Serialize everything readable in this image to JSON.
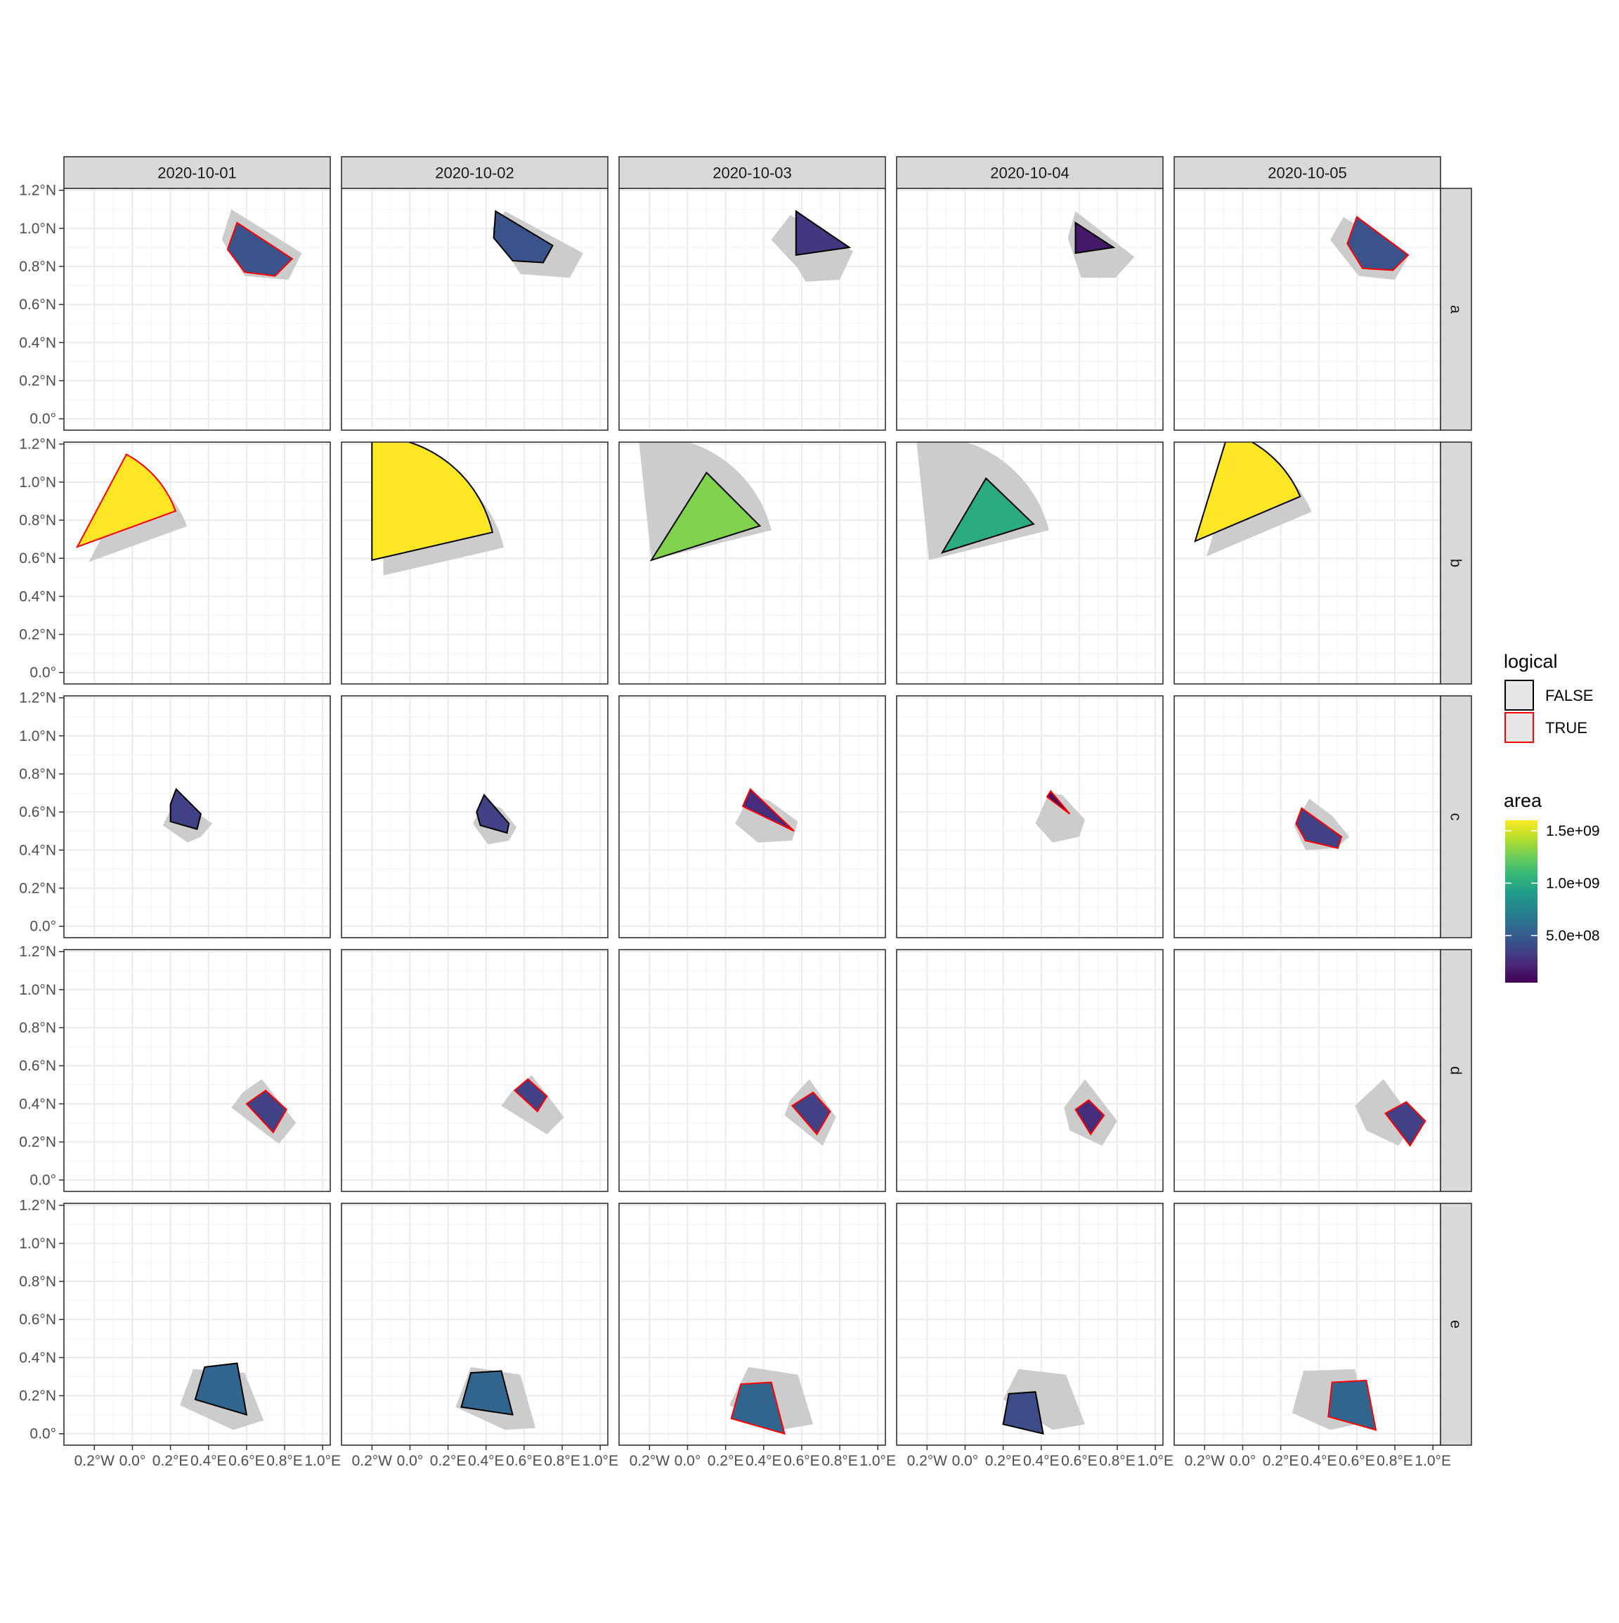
{
  "chart_data": {
    "type": "faceted-map",
    "title": "",
    "xlabel": "",
    "ylabel": "",
    "columns": [
      "2020-10-01",
      "2020-10-02",
      "2020-10-03",
      "2020-10-04",
      "2020-10-05"
    ],
    "rows": [
      "a",
      "b",
      "c",
      "d",
      "e"
    ],
    "x_ticks": [
      {
        "value": -0.2,
        "label": "0.2°W"
      },
      {
        "value": 0.0,
        "label": "0.0°"
      },
      {
        "value": 0.2,
        "label": "0.2°E"
      },
      {
        "value": 0.4,
        "label": "0.4°E"
      },
      {
        "value": 0.6,
        "label": "0.6°E"
      },
      {
        "value": 0.8,
        "label": "0.8°E"
      },
      {
        "value": 1.0,
        "label": "1.0°E"
      }
    ],
    "y_ticks": [
      {
        "value": 0.0,
        "label": "0.0°"
      },
      {
        "value": 0.2,
        "label": "0.2°N"
      },
      {
        "value": 0.4,
        "label": "0.4°N"
      },
      {
        "value": 0.6,
        "label": "0.6°N"
      },
      {
        "value": 0.8,
        "label": "0.8°N"
      },
      {
        "value": 1.0,
        "label": "1.0°N"
      },
      {
        "value": 1.2,
        "label": "1.2°N"
      }
    ],
    "xlim": [
      -0.36,
      1.04
    ],
    "ylim": [
      -0.06,
      1.21
    ],
    "grid": true,
    "legend_position": "right",
    "legend_logical": {
      "title": "logical",
      "entries": [
        {
          "label": "FALSE",
          "outline": "#000000"
        },
        {
          "label": "TRUE",
          "outline": "#ff0000"
        }
      ]
    },
    "legend_area": {
      "title": "area",
      "palette": "viridis",
      "range": [
        50000000.0,
        1600000000.0
      ],
      "ticks": [
        {
          "value": 1500000000.0,
          "label": "1.5e+09"
        },
        {
          "value": 1000000000.0,
          "label": "1.0e+09"
        },
        {
          "value": 500000000.0,
          "label": "5.0e+08"
        }
      ]
    },
    "shadow_color": "#cccccc",
    "polygons": {
      "a": [
        {
          "area": 450000000.0,
          "logical": "TRUE",
          "shape": [
            [
              0.55,
              1.03
            ],
            [
              0.84,
              0.84
            ],
            [
              0.75,
              0.75
            ],
            [
              0.59,
              0.77
            ],
            [
              0.5,
              0.89
            ]
          ],
          "shadow": [
            [
              0.47,
              0.94
            ],
            [
              0.52,
              1.1
            ],
            [
              0.89,
              0.87
            ],
            [
              0.82,
              0.73
            ],
            [
              0.59,
              0.75
            ]
          ]
        },
        {
          "area": 450000000.0,
          "logical": "FALSE",
          "shape": [
            [
              0.45,
              1.09
            ],
            [
              0.75,
              0.91
            ],
            [
              0.7,
              0.82
            ],
            [
              0.54,
              0.83
            ],
            [
              0.44,
              0.95
            ]
          ],
          "shadow": [
            [
              0.43,
              1.0
            ],
            [
              0.5,
              1.09
            ],
            [
              0.91,
              0.87
            ],
            [
              0.84,
              0.74
            ],
            [
              0.58,
              0.76
            ]
          ]
        },
        {
          "area": 300000000.0,
          "logical": "FALSE",
          "shape": [
            [
              0.57,
              1.09
            ],
            [
              0.85,
              0.9
            ],
            [
              0.57,
              0.86
            ]
          ],
          "shadow": [
            [
              0.44,
              0.94
            ],
            [
              0.54,
              1.07
            ],
            [
              0.87,
              0.88
            ],
            [
              0.8,
              0.73
            ],
            [
              0.62,
              0.72
            ],
            [
              0.58,
              0.79
            ]
          ]
        },
        {
          "area": 150000000.0,
          "logical": "FALSE",
          "shape": [
            [
              0.58,
              1.03
            ],
            [
              0.78,
              0.9
            ],
            [
              0.58,
              0.87
            ]
          ],
          "shadow": [
            [
              0.54,
              0.95
            ],
            [
              0.58,
              1.09
            ],
            [
              0.89,
              0.85
            ],
            [
              0.79,
              0.74
            ],
            [
              0.61,
              0.74
            ]
          ]
        },
        {
          "area": 450000000.0,
          "logical": "TRUE",
          "shape": [
            [
              0.6,
              1.06
            ],
            [
              0.87,
              0.86
            ],
            [
              0.79,
              0.78
            ],
            [
              0.63,
              0.79
            ],
            [
              0.55,
              0.92
            ]
          ],
          "shadow": [
            [
              0.46,
              0.94
            ],
            [
              0.53,
              1.06
            ],
            [
              0.87,
              0.85
            ],
            [
              0.8,
              0.73
            ],
            [
              0.61,
              0.75
            ]
          ]
        }
      ],
      "b": [
        {
          "area": 1600000000.0,
          "logical": "TRUE",
          "shape": "sector",
          "center": [
            -0.29,
            0.66
          ],
          "angles": [
            62,
            20
          ],
          "radius": 0.55
        },
        {
          "area": 1600000000.0,
          "logical": "FALSE",
          "shape": "sector",
          "center": [
            -0.2,
            0.59
          ],
          "angles": [
            90,
            13
          ],
          "radius": 0.65
        },
        {
          "area": 1300000000.0,
          "logical": "FALSE",
          "shape": [
            [
              0.1,
              1.05
            ],
            [
              0.38,
              0.77
            ],
            [
              -0.19,
              0.59
            ]
          ],
          "shadow_sector": {
            "center": [
              -0.19,
              0.59
            ],
            "angles": [
              96,
              14
            ],
            "radius": 0.65
          }
        },
        {
          "area": 1000000000.0,
          "logical": "FALSE",
          "shape": [
            [
              0.11,
              1.02
            ],
            [
              0.36,
              0.78
            ],
            [
              -0.12,
              0.63
            ]
          ],
          "shadow_sector": {
            "center": [
              -0.19,
              0.59
            ],
            "angles": [
              96,
              14
            ],
            "radius": 0.65
          }
        },
        {
          "area": 1600000000.0,
          "logical": "FALSE",
          "shape": "sector",
          "center": [
            -0.25,
            0.69
          ],
          "angles": [
            73,
            23
          ],
          "radius": 0.6
        }
      ],
      "c": [
        {
          "area": 350000000.0,
          "logical": "FALSE",
          "shape": [
            [
              0.23,
              0.72
            ],
            [
              0.36,
              0.59
            ],
            [
              0.34,
              0.51
            ],
            [
              0.2,
              0.55
            ],
            [
              0.2,
              0.64
            ]
          ],
          "shadow": [
            [
              0.16,
              0.53
            ],
            [
              0.22,
              0.65
            ],
            [
              0.3,
              0.62
            ],
            [
              0.42,
              0.54
            ],
            [
              0.36,
              0.47
            ],
            [
              0.29,
              0.44
            ]
          ]
        },
        {
          "area": 350000000.0,
          "logical": "FALSE",
          "shape": [
            [
              0.39,
              0.69
            ],
            [
              0.52,
              0.54
            ],
            [
              0.51,
              0.49
            ],
            [
              0.37,
              0.53
            ],
            [
              0.35,
              0.6
            ]
          ],
          "shadow": [
            [
              0.33,
              0.54
            ],
            [
              0.39,
              0.65
            ],
            [
              0.48,
              0.62
            ],
            [
              0.56,
              0.52
            ],
            [
              0.52,
              0.45
            ],
            [
              0.41,
              0.43
            ]
          ]
        },
        {
          "area": 250000000.0,
          "logical": "TRUE",
          "shape": [
            [
              0.33,
              0.72
            ],
            [
              0.56,
              0.5
            ],
            [
              0.29,
              0.63
            ]
          ],
          "shadow": [
            [
              0.25,
              0.54
            ],
            [
              0.33,
              0.69
            ],
            [
              0.43,
              0.66
            ],
            [
              0.58,
              0.55
            ],
            [
              0.55,
              0.45
            ],
            [
              0.37,
              0.44
            ]
          ]
        },
        {
          "area": 100000000.0,
          "logical": "TRUE",
          "shape": [
            [
              0.45,
              0.71
            ],
            [
              0.55,
              0.59
            ],
            [
              0.43,
              0.68
            ]
          ],
          "shadow": [
            [
              0.37,
              0.54
            ],
            [
              0.44,
              0.7
            ],
            [
              0.51,
              0.69
            ],
            [
              0.63,
              0.56
            ],
            [
              0.6,
              0.47
            ],
            [
              0.46,
              0.44
            ]
          ]
        },
        {
          "area": 350000000.0,
          "logical": "TRUE",
          "shape": [
            [
              0.31,
              0.62
            ],
            [
              0.52,
              0.47
            ],
            [
              0.5,
              0.41
            ],
            [
              0.33,
              0.45
            ],
            [
              0.28,
              0.54
            ]
          ],
          "shadow": [
            [
              0.27,
              0.53
            ],
            [
              0.35,
              0.67
            ],
            [
              0.47,
              0.58
            ],
            [
              0.56,
              0.47
            ],
            [
              0.49,
              0.41
            ],
            [
              0.33,
              0.4
            ]
          ]
        }
      ],
      "d": [
        {
          "area": 350000000.0,
          "logical": "TRUE",
          "shape": [
            [
              0.7,
              0.47
            ],
            [
              0.81,
              0.37
            ],
            [
              0.74,
              0.25
            ],
            [
              0.6,
              0.4
            ]
          ],
          "shadow": [
            [
              0.58,
              0.46
            ],
            [
              0.68,
              0.53
            ],
            [
              0.86,
              0.3
            ],
            [
              0.77,
              0.19
            ],
            [
              0.52,
              0.38
            ]
          ]
        },
        {
          "area": 350000000.0,
          "logical": "TRUE",
          "shape": [
            [
              0.62,
              0.53
            ],
            [
              0.72,
              0.44
            ],
            [
              0.67,
              0.36
            ],
            [
              0.55,
              0.47
            ]
          ],
          "shadow": [
            [
              0.54,
              0.47
            ],
            [
              0.64,
              0.55
            ],
            [
              0.81,
              0.33
            ],
            [
              0.72,
              0.24
            ],
            [
              0.48,
              0.39
            ]
          ]
        },
        {
          "area": 350000000.0,
          "logical": "TRUE",
          "shape": [
            [
              0.66,
              0.46
            ],
            [
              0.75,
              0.36
            ],
            [
              0.68,
              0.24
            ],
            [
              0.55,
              0.39
            ]
          ],
          "shadow": [
            [
              0.54,
              0.42
            ],
            [
              0.64,
              0.53
            ],
            [
              0.78,
              0.33
            ],
            [
              0.71,
              0.18
            ],
            [
              0.51,
              0.34
            ]
          ]
        },
        {
          "area": 250000000.0,
          "logical": "TRUE",
          "shape": [
            [
              0.65,
              0.42
            ],
            [
              0.73,
              0.34
            ],
            [
              0.66,
              0.24
            ],
            [
              0.58,
              0.37
            ]
          ],
          "shadow": [
            [
              0.52,
              0.38
            ],
            [
              0.63,
              0.53
            ],
            [
              0.8,
              0.31
            ],
            [
              0.72,
              0.18
            ],
            [
              0.55,
              0.26
            ]
          ]
        },
        {
          "area": 350000000.0,
          "logical": "TRUE",
          "shape": [
            [
              0.86,
              0.41
            ],
            [
              0.96,
              0.31
            ],
            [
              0.88,
              0.18
            ],
            [
              0.75,
              0.35
            ]
          ],
          "shadow": [
            [
              0.59,
              0.39
            ],
            [
              0.74,
              0.53
            ],
            [
              0.9,
              0.31
            ],
            [
              0.82,
              0.18
            ],
            [
              0.65,
              0.26
            ]
          ]
        }
      ],
      "e": [
        {
          "area": 550000000.0,
          "logical": "FALSE",
          "shape": [
            [
              0.38,
              0.35
            ],
            [
              0.55,
              0.37
            ],
            [
              0.6,
              0.1
            ],
            [
              0.33,
              0.18
            ]
          ],
          "shadow": [
            [
              0.25,
              0.15
            ],
            [
              0.32,
              0.34
            ],
            [
              0.59,
              0.32
            ],
            [
              0.69,
              0.07
            ],
            [
              0.53,
              0.02
            ]
          ]
        },
        {
          "area": 550000000.0,
          "logical": "FALSE",
          "shape": [
            [
              0.32,
              0.32
            ],
            [
              0.48,
              0.33
            ],
            [
              0.54,
              0.1
            ],
            [
              0.27,
              0.14
            ]
          ],
          "shadow": [
            [
              0.24,
              0.14
            ],
            [
              0.32,
              0.35
            ],
            [
              0.58,
              0.31
            ],
            [
              0.66,
              0.03
            ],
            [
              0.5,
              0.02
            ]
          ]
        },
        {
          "area": 550000000.0,
          "logical": "TRUE",
          "shape": [
            [
              0.28,
              0.26
            ],
            [
              0.44,
              0.27
            ],
            [
              0.51,
              0.0
            ],
            [
              0.23,
              0.08
            ]
          ],
          "shadow": [
            [
              0.22,
              0.15
            ],
            [
              0.32,
              0.35
            ],
            [
              0.58,
              0.31
            ],
            [
              0.66,
              0.05
            ],
            [
              0.49,
              0.02
            ]
          ]
        },
        {
          "area": 400000000.0,
          "logical": "FALSE",
          "shape": [
            [
              0.23,
              0.21
            ],
            [
              0.37,
              0.22
            ],
            [
              0.41,
              0.0
            ],
            [
              0.2,
              0.05
            ]
          ],
          "shadow": [
            [
              0.2,
              0.18
            ],
            [
              0.28,
              0.34
            ],
            [
              0.53,
              0.31
            ],
            [
              0.63,
              0.05
            ],
            [
              0.46,
              0.02
            ]
          ]
        },
        {
          "area": 550000000.0,
          "logical": "TRUE",
          "shape": [
            [
              0.47,
              0.27
            ],
            [
              0.65,
              0.28
            ],
            [
              0.7,
              0.02
            ],
            [
              0.45,
              0.09
            ]
          ],
          "shadow": [
            [
              0.26,
              0.11
            ],
            [
              0.32,
              0.33
            ],
            [
              0.59,
              0.34
            ],
            [
              0.65,
              0.06
            ],
            [
              0.46,
              0.02
            ]
          ]
        }
      ]
    }
  }
}
